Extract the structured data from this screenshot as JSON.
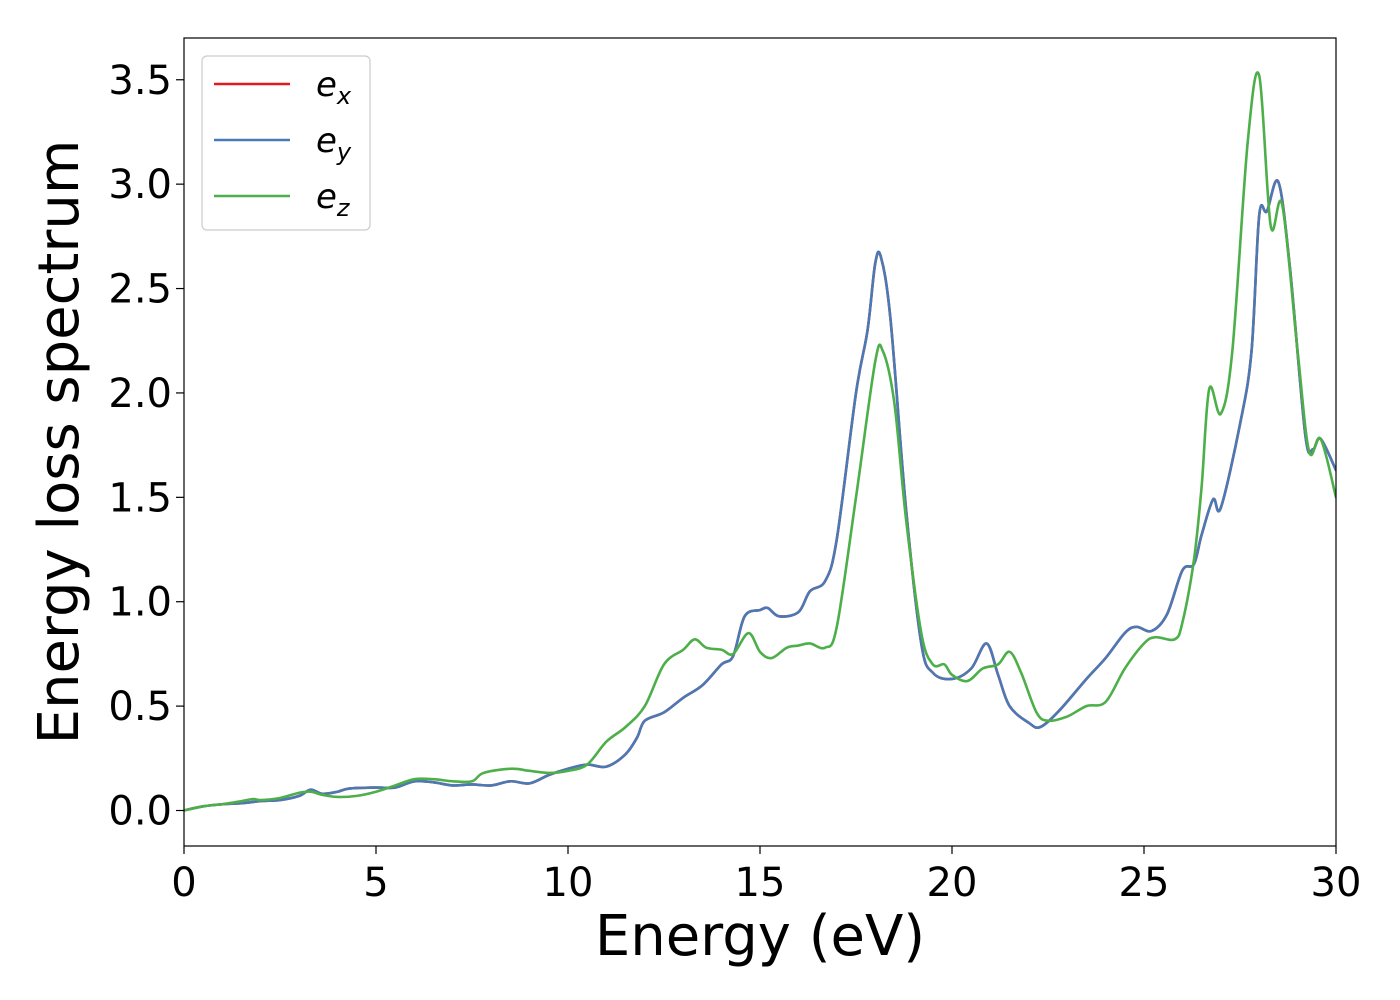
{
  "chart_data": {
    "type": "line",
    "xlabel": "Energy (eV)",
    "ylabel": "Energy loss spectrum",
    "xlim": [
      0,
      30
    ],
    "ylim": [
      -0.17,
      3.7
    ],
    "xticks": [
      0,
      5,
      10,
      15,
      20,
      25,
      30
    ],
    "xtick_labels": [
      "0",
      "5",
      "10",
      "15",
      "20",
      "25",
      "30"
    ],
    "yticks": [
      0.0,
      0.5,
      1.0,
      1.5,
      2.0,
      2.5,
      3.0,
      3.5
    ],
    "ytick_labels": [
      "0.0",
      "0.5",
      "1.0",
      "1.5",
      "2.0",
      "2.5",
      "3.0",
      "3.5"
    ],
    "grid": false,
    "legend_position": "top-left",
    "series": [
      {
        "name": "e",
        "subscript": "x",
        "color": "#e41a1c",
        "points": [
          [
            0,
            0.0
          ],
          [
            0.5,
            0.02
          ],
          [
            1.0,
            0.03
          ],
          [
            1.5,
            0.035
          ],
          [
            2.0,
            0.045
          ],
          [
            2.5,
            0.05
          ],
          [
            3.0,
            0.07
          ],
          [
            3.3,
            0.1
          ],
          [
            3.6,
            0.08
          ],
          [
            4.0,
            0.09
          ],
          [
            4.3,
            0.105
          ],
          [
            5.0,
            0.11
          ],
          [
            5.5,
            0.11
          ],
          [
            6.0,
            0.14
          ],
          [
            6.5,
            0.135
          ],
          [
            7.0,
            0.12
          ],
          [
            7.5,
            0.125
          ],
          [
            8.0,
            0.12
          ],
          [
            8.5,
            0.14
          ],
          [
            9.0,
            0.13
          ],
          [
            9.5,
            0.17
          ],
          [
            10.0,
            0.2
          ],
          [
            10.5,
            0.22
          ],
          [
            11.0,
            0.21
          ],
          [
            11.5,
            0.27
          ],
          [
            11.8,
            0.35
          ],
          [
            12.0,
            0.43
          ],
          [
            12.5,
            0.47
          ],
          [
            13.0,
            0.54
          ],
          [
            13.5,
            0.6
          ],
          [
            14.0,
            0.7
          ],
          [
            14.3,
            0.74
          ],
          [
            14.6,
            0.93
          ],
          [
            15.0,
            0.96
          ],
          [
            15.2,
            0.97
          ],
          [
            15.5,
            0.93
          ],
          [
            16.0,
            0.95
          ],
          [
            16.3,
            1.05
          ],
          [
            16.7,
            1.1
          ],
          [
            17.0,
            1.3
          ],
          [
            17.5,
            2.0
          ],
          [
            17.8,
            2.3
          ],
          [
            18.0,
            2.62
          ],
          [
            18.15,
            2.65
          ],
          [
            18.4,
            2.35
          ],
          [
            18.8,
            1.45
          ],
          [
            19.2,
            0.8
          ],
          [
            19.5,
            0.66
          ],
          [
            20.0,
            0.63
          ],
          [
            20.5,
            0.68
          ],
          [
            20.9,
            0.8
          ],
          [
            21.2,
            0.65
          ],
          [
            21.5,
            0.5
          ],
          [
            22.0,
            0.42
          ],
          [
            22.3,
            0.4
          ],
          [
            22.8,
            0.48
          ],
          [
            23.5,
            0.63
          ],
          [
            24.0,
            0.73
          ],
          [
            24.5,
            0.85
          ],
          [
            24.8,
            0.88
          ],
          [
            25.2,
            0.86
          ],
          [
            25.6,
            0.94
          ],
          [
            26.0,
            1.15
          ],
          [
            26.3,
            1.18
          ],
          [
            26.5,
            1.32
          ],
          [
            26.8,
            1.49
          ],
          [
            27.0,
            1.45
          ],
          [
            27.5,
            1.85
          ],
          [
            27.8,
            2.2
          ],
          [
            28.0,
            2.85
          ],
          [
            28.2,
            2.87
          ],
          [
            28.5,
            3.01
          ],
          [
            28.8,
            2.6
          ],
          [
            29.2,
            1.8
          ],
          [
            29.4,
            1.73
          ],
          [
            29.6,
            1.78
          ],
          [
            30.0,
            1.63
          ]
        ]
      },
      {
        "name": "e",
        "subscript": "y",
        "color": "#4a7ab5",
        "points": [
          [
            0,
            0.0
          ],
          [
            0.5,
            0.02
          ],
          [
            1.0,
            0.03
          ],
          [
            1.5,
            0.035
          ],
          [
            2.0,
            0.045
          ],
          [
            2.5,
            0.05
          ],
          [
            3.0,
            0.07
          ],
          [
            3.3,
            0.1
          ],
          [
            3.6,
            0.08
          ],
          [
            4.0,
            0.09
          ],
          [
            4.3,
            0.105
          ],
          [
            5.0,
            0.11
          ],
          [
            5.5,
            0.11
          ],
          [
            6.0,
            0.14
          ],
          [
            6.5,
            0.135
          ],
          [
            7.0,
            0.12
          ],
          [
            7.5,
            0.125
          ],
          [
            8.0,
            0.12
          ],
          [
            8.5,
            0.14
          ],
          [
            9.0,
            0.13
          ],
          [
            9.5,
            0.17
          ],
          [
            10.0,
            0.2
          ],
          [
            10.5,
            0.22
          ],
          [
            11.0,
            0.21
          ],
          [
            11.5,
            0.27
          ],
          [
            11.8,
            0.35
          ],
          [
            12.0,
            0.43
          ],
          [
            12.5,
            0.47
          ],
          [
            13.0,
            0.54
          ],
          [
            13.5,
            0.6
          ],
          [
            14.0,
            0.7
          ],
          [
            14.3,
            0.74
          ],
          [
            14.6,
            0.93
          ],
          [
            15.0,
            0.96
          ],
          [
            15.2,
            0.97
          ],
          [
            15.5,
            0.93
          ],
          [
            16.0,
            0.95
          ],
          [
            16.3,
            1.05
          ],
          [
            16.7,
            1.1
          ],
          [
            17.0,
            1.3
          ],
          [
            17.5,
            2.0
          ],
          [
            17.8,
            2.3
          ],
          [
            18.0,
            2.62
          ],
          [
            18.15,
            2.65
          ],
          [
            18.4,
            2.35
          ],
          [
            18.8,
            1.45
          ],
          [
            19.2,
            0.8
          ],
          [
            19.5,
            0.66
          ],
          [
            20.0,
            0.63
          ],
          [
            20.5,
            0.68
          ],
          [
            20.9,
            0.8
          ],
          [
            21.2,
            0.65
          ],
          [
            21.5,
            0.5
          ],
          [
            22.0,
            0.42
          ],
          [
            22.3,
            0.4
          ],
          [
            22.8,
            0.48
          ],
          [
            23.5,
            0.63
          ],
          [
            24.0,
            0.73
          ],
          [
            24.5,
            0.85
          ],
          [
            24.8,
            0.88
          ],
          [
            25.2,
            0.86
          ],
          [
            25.6,
            0.94
          ],
          [
            26.0,
            1.15
          ],
          [
            26.3,
            1.18
          ],
          [
            26.5,
            1.32
          ],
          [
            26.8,
            1.49
          ],
          [
            27.0,
            1.45
          ],
          [
            27.5,
            1.85
          ],
          [
            27.8,
            2.2
          ],
          [
            28.0,
            2.85
          ],
          [
            28.2,
            2.87
          ],
          [
            28.5,
            3.01
          ],
          [
            28.8,
            2.6
          ],
          [
            29.2,
            1.8
          ],
          [
            29.4,
            1.73
          ],
          [
            29.6,
            1.78
          ],
          [
            30.0,
            1.63
          ]
        ]
      },
      {
        "name": "e",
        "subscript": "z",
        "color": "#4daf4a",
        "points": [
          [
            0,
            0.0
          ],
          [
            0.5,
            0.02
          ],
          [
            1.0,
            0.03
          ],
          [
            1.5,
            0.045
          ],
          [
            1.8,
            0.055
          ],
          [
            2.0,
            0.05
          ],
          [
            2.5,
            0.06
          ],
          [
            3.0,
            0.085
          ],
          [
            3.3,
            0.09
          ],
          [
            3.6,
            0.075
          ],
          [
            4.0,
            0.065
          ],
          [
            4.5,
            0.07
          ],
          [
            5.0,
            0.09
          ],
          [
            5.5,
            0.12
          ],
          [
            6.0,
            0.15
          ],
          [
            6.5,
            0.15
          ],
          [
            7.0,
            0.14
          ],
          [
            7.5,
            0.14
          ],
          [
            7.8,
            0.18
          ],
          [
            8.5,
            0.2
          ],
          [
            9.0,
            0.19
          ],
          [
            9.5,
            0.18
          ],
          [
            10.0,
            0.19
          ],
          [
            10.5,
            0.22
          ],
          [
            11.0,
            0.33
          ],
          [
            11.5,
            0.4
          ],
          [
            12.0,
            0.5
          ],
          [
            12.5,
            0.7
          ],
          [
            13.0,
            0.77
          ],
          [
            13.3,
            0.82
          ],
          [
            13.6,
            0.78
          ],
          [
            14.0,
            0.77
          ],
          [
            14.3,
            0.75
          ],
          [
            14.7,
            0.85
          ],
          [
            15.0,
            0.76
          ],
          [
            15.3,
            0.73
          ],
          [
            15.7,
            0.78
          ],
          [
            16.0,
            0.79
          ],
          [
            16.3,
            0.8
          ],
          [
            16.7,
            0.78
          ],
          [
            17.0,
            0.88
          ],
          [
            17.5,
            1.5
          ],
          [
            18.0,
            2.15
          ],
          [
            18.2,
            2.2
          ],
          [
            18.5,
            1.95
          ],
          [
            18.8,
            1.4
          ],
          [
            19.2,
            0.85
          ],
          [
            19.5,
            0.7
          ],
          [
            19.8,
            0.7
          ],
          [
            20.0,
            0.65
          ],
          [
            20.4,
            0.62
          ],
          [
            20.8,
            0.68
          ],
          [
            21.2,
            0.7
          ],
          [
            21.5,
            0.76
          ],
          [
            21.8,
            0.66
          ],
          [
            22.2,
            0.47
          ],
          [
            22.5,
            0.43
          ],
          [
            23.0,
            0.45
          ],
          [
            23.5,
            0.5
          ],
          [
            24.0,
            0.52
          ],
          [
            24.5,
            0.68
          ],
          [
            25.0,
            0.8
          ],
          [
            25.3,
            0.83
          ],
          [
            25.8,
            0.82
          ],
          [
            26.0,
            0.9
          ],
          [
            26.3,
            1.2
          ],
          [
            26.5,
            1.55
          ],
          [
            26.7,
            2.02
          ],
          [
            27.0,
            1.9
          ],
          [
            27.3,
            2.2
          ],
          [
            27.7,
            3.2
          ],
          [
            28.0,
            3.52
          ],
          [
            28.3,
            2.8
          ],
          [
            28.6,
            2.9
          ],
          [
            29.0,
            2.2
          ],
          [
            29.3,
            1.72
          ],
          [
            29.6,
            1.78
          ],
          [
            30.0,
            1.5
          ]
        ]
      }
    ]
  }
}
